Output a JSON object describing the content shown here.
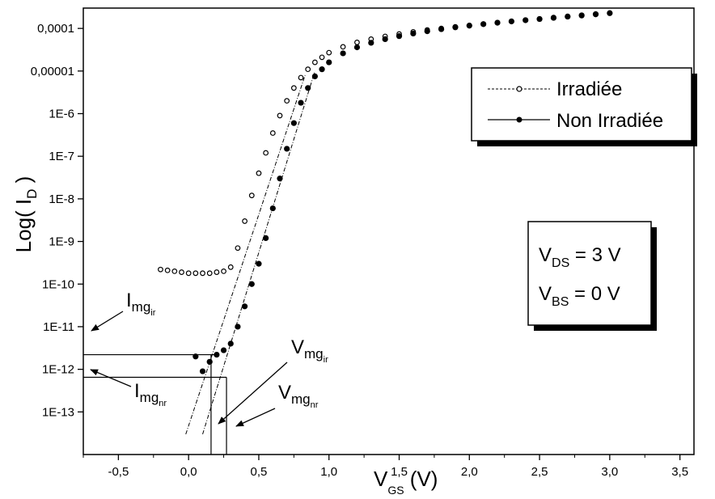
{
  "chart_data": {
    "type": "scatter",
    "title": "",
    "xlabel": "V",
    "xlabel_sub": "GS",
    "xlabel_unit": " (V)",
    "ylabel": "Log( I",
    "ylabel_sub": "D",
    "ylabel_end": " )",
    "x_scale": "linear",
    "y_scale": "log",
    "xlim": [
      -0.75,
      3.6
    ],
    "ylim": [
      1e-14,
      0.0003
    ],
    "x_ticks": [
      -0.5,
      0.0,
      0.5,
      1.0,
      1.5,
      2.0,
      2.5,
      3.0,
      3.5
    ],
    "x_tick_labels": [
      "-0,5",
      "0,0",
      "0,5",
      "1,0",
      "1,5",
      "2,0",
      "2,5",
      "3,0",
      "3,5"
    ],
    "y_ticks": [
      1e-13,
      1e-12,
      1e-11,
      1e-10,
      1e-09,
      1e-08,
      1e-07,
      1e-06,
      1e-05,
      0.0001
    ],
    "y_tick_labels": [
      "1E-13",
      "1E-12",
      "1E-11",
      "1E-10",
      "1E-9",
      "1E-8",
      "1E-7",
      "1E-6",
      "0,00001",
      "0,0001"
    ],
    "grid": false,
    "legend_position": "top-right",
    "series": [
      {
        "name": "Irradiée",
        "marker": "open-circle",
        "color": "#000000",
        "x": [
          -0.2,
          -0.15,
          -0.1,
          -0.05,
          0.0,
          0.05,
          0.1,
          0.15,
          0.2,
          0.25,
          0.3,
          0.35,
          0.4,
          0.45,
          0.5,
          0.55,
          0.6,
          0.65,
          0.7,
          0.75,
          0.8,
          0.85,
          0.9,
          0.95,
          1.0,
          1.1,
          1.2,
          1.3,
          1.4,
          1.5,
          1.6,
          1.7,
          1.8,
          1.9,
          2.0,
          2.1,
          2.2,
          2.3,
          2.4,
          2.5,
          2.6,
          2.7,
          2.8,
          2.9,
          3.0
        ],
        "y": [
          2.2e-10,
          2.1e-10,
          2e-10,
          1.9e-10,
          1.8e-10,
          1.8e-10,
          1.8e-10,
          1.8e-10,
          1.9e-10,
          2e-10,
          2.5e-10,
          7e-10,
          3e-09,
          1.2e-08,
          4e-08,
          1.2e-07,
          3.5e-07,
          9e-07,
          2e-06,
          4e-06,
          7e-06,
          1.1e-05,
          1.6e-05,
          2.1e-05,
          2.7e-05,
          3.7e-05,
          4.7e-05,
          5.6e-05,
          6.5e-05,
          7.4e-05,
          8.3e-05,
          9.2e-05,
          0.0001,
          0.000109,
          0.000118,
          0.000127,
          0.000137,
          0.000147,
          0.000157,
          0.000168,
          0.00018,
          0.000192,
          0.000205,
          0.000218,
          0.00023
        ]
      },
      {
        "name": "Non Irradiée",
        "marker": "filled-circle",
        "color": "#000000",
        "x": [
          0.05,
          0.1,
          0.15,
          0.2,
          0.25,
          0.3,
          0.35,
          0.4,
          0.45,
          0.5,
          0.55,
          0.6,
          0.65,
          0.7,
          0.75,
          0.8,
          0.85,
          0.9,
          0.95,
          1.0,
          1.1,
          1.2,
          1.3,
          1.4,
          1.5,
          1.6,
          1.7,
          1.8,
          1.9,
          2.0,
          2.1,
          2.2,
          2.3,
          2.4,
          2.5,
          2.6,
          2.7,
          2.8,
          2.9,
          3.0
        ],
        "y": [
          2e-12,
          9e-13,
          1.5e-12,
          2.2e-12,
          2.8e-12,
          4e-12,
          1e-11,
          3e-11,
          1e-10,
          3e-10,
          1.2e-09,
          6e-09,
          3e-08,
          1.5e-07,
          6e-07,
          1.8e-06,
          4e-06,
          7.5e-06,
          1.1e-05,
          1.6e-05,
          2.6e-05,
          3.6e-05,
          4.6e-05,
          5.6e-05,
          6.6e-05,
          7.6e-05,
          8.6e-05,
          9.6e-05,
          0.000106,
          0.000116,
          0.000126,
          0.000136,
          0.000146,
          0.000156,
          0.000166,
          0.000177,
          0.000189,
          0.000201,
          0.000214,
          0.000228
        ]
      }
    ],
    "tangent_lines": [
      {
        "name": "tangent-irradiee",
        "x": [
          -0.02,
          0.83
        ],
        "y": [
          3e-14,
          8e-06
        ]
      },
      {
        "name": "tangent-non-irradiee",
        "x": [
          0.1,
          0.9
        ],
        "y": [
          3e-14,
          1e-05
        ]
      }
    ],
    "reference_levels": {
      "I_mg_ir": 2.2e-12,
      "I_mg_nr": 6.5e-13,
      "V_mg_ir": 0.16,
      "V_mg_nr": 0.27
    },
    "annotations": {
      "img_ir": {
        "main": "I",
        "sub": "mg",
        "subsub": "ir"
      },
      "img_nr": {
        "main": "I",
        "sub": "mg",
        "subsub": "nr"
      },
      "vmg_ir": {
        "main": "V",
        "sub": "mg",
        "subsub": "ir"
      },
      "vmg_nr": {
        "main": "V",
        "sub": "mg",
        "subsub": "nr"
      }
    },
    "conditions": {
      "vds": {
        "main": "V",
        "sub": "DS",
        "value": " = 3 V"
      },
      "vbs": {
        "main": "V",
        "sub": "BS",
        "value": " = 0 V"
      }
    }
  }
}
